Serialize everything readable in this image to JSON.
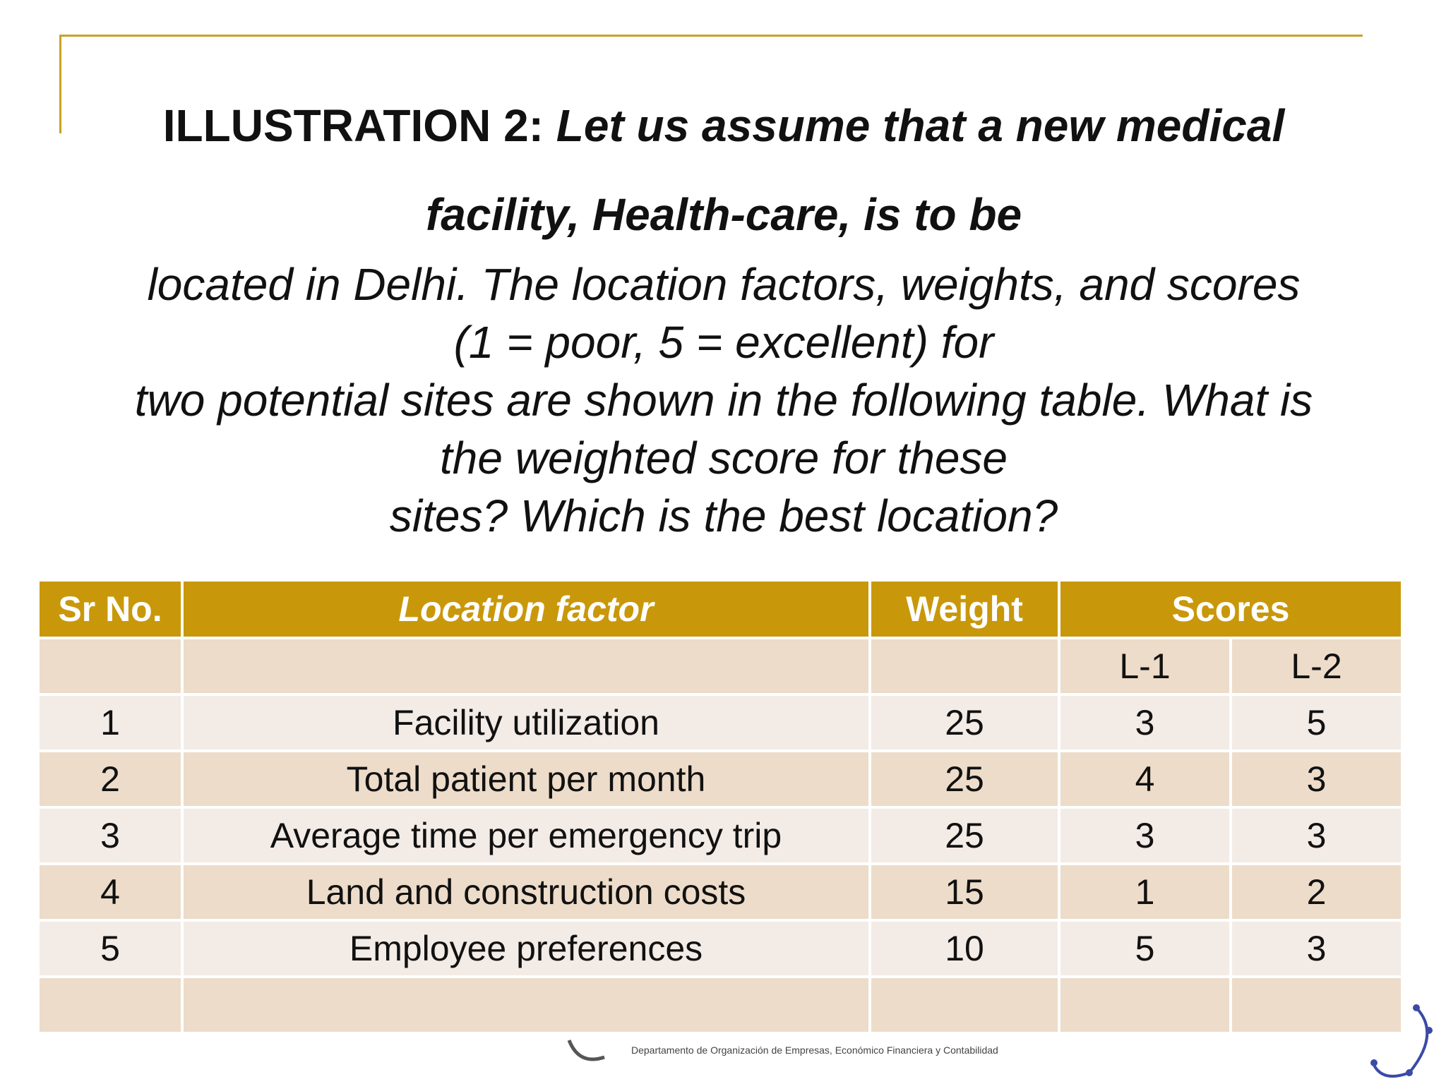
{
  "title": {
    "lead": "ILLUSTRATION 2:",
    "italic_1": "Let us assume that a new medical",
    "line2": "facility, Health-care, is to be"
  },
  "body_lines": [
    "located in Delhi. The location factors, weights, and scores",
    "(1 = poor, 5 = excellent) for",
    "two potential sites are shown in the following table. What is",
    "the weighted score for these",
    "sites? Which is the best location?"
  ],
  "table": {
    "headers": {
      "sr_no": "Sr No.",
      "factor": "Location factor",
      "weight": "Weight",
      "scores": "Scores"
    },
    "sub_headers": {
      "l1": "L-1",
      "l2": "L-2"
    },
    "rows": [
      {
        "sr": "1",
        "factor": "Facility utilization",
        "weight": "25",
        "l1": "3",
        "l2": "5"
      },
      {
        "sr": "2",
        "factor": "Total patient per month",
        "weight": "25",
        "l1": "4",
        "l2": "3"
      },
      {
        "sr": "3",
        "factor": "Average time per emergency trip",
        "weight": "25",
        "l1": "3",
        "l2": "3"
      },
      {
        "sr": "4",
        "factor": "Land and construction costs",
        "weight": "15",
        "l1": "1",
        "l2": "2"
      },
      {
        "sr": "5",
        "factor": "Employee preferences",
        "weight": "10",
        "l1": "5",
        "l2": "3"
      }
    ]
  },
  "colors": {
    "accent": "#c9a227",
    "header_bg": "#c9980a",
    "row_light": "#f3ebe6",
    "row_dark": "#ecdcc9"
  },
  "footer": {
    "department": "Departamento de Organización de Empresas, Económico Financiera y Contabilidad"
  }
}
